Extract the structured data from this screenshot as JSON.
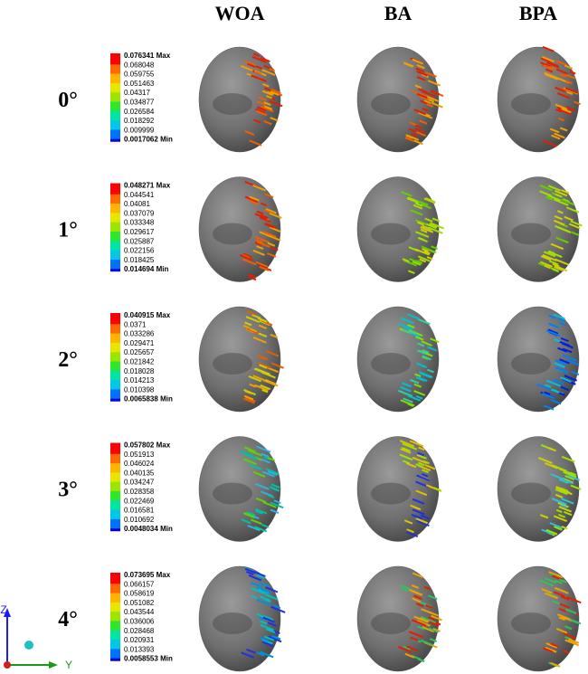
{
  "columns": [
    "WOA",
    "BA",
    "BPA"
  ],
  "max_label": "Max",
  "min_label": "Min",
  "rows": [
    {
      "label": "0°",
      "legend": [
        "0.076341",
        "0.068048",
        "0.059755",
        "0.051463",
        "0.04317",
        "0.034877",
        "0.026584",
        "0.018292",
        "0.009999",
        "0.0017062"
      ]
    },
    {
      "label": "1°",
      "legend": [
        "0.048271",
        "0.044541",
        "0.04081",
        "0.037079",
        "0.033348",
        "0.029617",
        "0.025887",
        "0.022156",
        "0.018425",
        "0.014694"
      ]
    },
    {
      "label": "2°",
      "legend": [
        "0.040915",
        "0.0371",
        "0.033286",
        "0.029471",
        "0.025657",
        "0.021842",
        "0.018028",
        "0.014213",
        "0.010398",
        "0.0065838"
      ]
    },
    {
      "label": "3°",
      "legend": [
        "0.057802",
        "0.051913",
        "0.046024",
        "0.040135",
        "0.034247",
        "0.028358",
        "0.022469",
        "0.016581",
        "0.010692",
        "0.0048034"
      ]
    },
    {
      "label": "4°",
      "legend": [
        "0.073695",
        "0.066157",
        "0.058619",
        "0.051082",
        "0.043544",
        "0.036006",
        "0.028468",
        "0.020931",
        "0.013393",
        "0.0058553"
      ]
    }
  ],
  "axes": {
    "z": "Z",
    "y": "Y"
  }
}
